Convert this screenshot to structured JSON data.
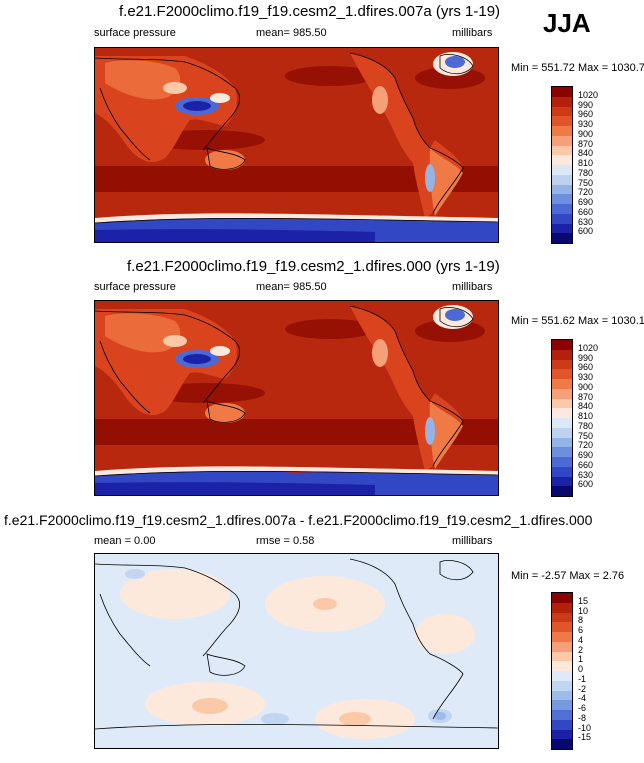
{
  "season": "JJA",
  "panels": [
    {
      "title": "f.e21.F2000climo.f19_f19.cesm2_1.dfires.007a (yrs 1-19)",
      "left_label": "surface pressure",
      "center_label": "mean= 985.50",
      "right_label": "millibars",
      "minmax": "Min = 551.72 Max = 1030.72"
    },
    {
      "title": "f.e21.F2000climo.f19_f19.cesm2_1.dfires.000 (yrs 1-19)",
      "left_label": "surface pressure",
      "center_label": "mean= 985.50",
      "right_label": "millibars",
      "minmax": "Min = 551.62 Max = 1030.13"
    },
    {
      "title": "f.e21.F2000climo.f19_f19.cesm2_1.dfires.007a - f.e21.F2000climo.f19_f19.cesm2_1.dfires.000",
      "left_label": "mean =   0.00",
      "center_label": "rmse =   0.58",
      "right_label": "millibars",
      "minmax": "Min =  -2.57 Max =   2.76"
    }
  ],
  "chart_data": [
    {
      "type": "heatmap",
      "title": "f.e21.F2000climo.f19_f19.cesm2_1.dfires.007a (yrs 1-19)",
      "variable": "surface pressure",
      "units": "millibars",
      "mean": 985.5,
      "min": 551.72,
      "max": 1030.72,
      "colorbar_levels": [
        "1020",
        "990",
        "960",
        "930",
        "900",
        "870",
        "840",
        "810",
        "780",
        "750",
        "720",
        "690",
        "660",
        "630",
        "600"
      ],
      "colorbar_colors": [
        "#8b0000",
        "#b3200c",
        "#cc3a18",
        "#e0552a",
        "#ef7a45",
        "#f6a07a",
        "#fbc8a8",
        "#fbe9dd",
        "#dde8f6",
        "#bcd2ef",
        "#94b4e6",
        "#6e8ede",
        "#4c6ad6",
        "#3247c4",
        "#1c22a8",
        "#08086e"
      ]
    },
    {
      "type": "heatmap",
      "title": "f.e21.F2000climo.f19_f19.cesm2_1.dfires.000 (yrs 1-19)",
      "variable": "surface pressure",
      "units": "millibars",
      "mean": 985.5,
      "min": 551.62,
      "max": 1030.13,
      "colorbar_levels": [
        "1020",
        "990",
        "960",
        "930",
        "900",
        "870",
        "840",
        "810",
        "780",
        "750",
        "720",
        "690",
        "660",
        "630",
        "600"
      ],
      "colorbar_colors": [
        "#8b0000",
        "#b3200c",
        "#cc3a18",
        "#e0552a",
        "#ef7a45",
        "#f6a07a",
        "#fbc8a8",
        "#fbe9dd",
        "#dde8f6",
        "#bcd2ef",
        "#94b4e6",
        "#6e8ede",
        "#4c6ad6",
        "#3247c4",
        "#1c22a8",
        "#08086e"
      ]
    },
    {
      "type": "heatmap",
      "title": "f.e21.F2000climo.f19_f19.cesm2_1.dfires.007a - f.e21.F2000climo.f19_f19.cesm2_1.dfires.000",
      "units": "millibars",
      "mean": 0.0,
      "rmse": 0.58,
      "min": -2.57,
      "max": 2.76,
      "colorbar_levels": [
        "15",
        "10",
        "8",
        "6",
        "4",
        "2",
        "1",
        "0",
        "-1",
        "-2",
        "-4",
        "-6",
        "-8",
        "-10",
        "-15"
      ],
      "colorbar_colors": [
        "#8b0000",
        "#b3200c",
        "#cc3a18",
        "#e0552a",
        "#ef7a45",
        "#f6a07a",
        "#fbc8a8",
        "#fde9dc",
        "#dfeaf8",
        "#c0d6f2",
        "#9dbcea",
        "#7699e0",
        "#5070d6",
        "#3247c4",
        "#1c22a8",
        "#08086e"
      ]
    }
  ]
}
